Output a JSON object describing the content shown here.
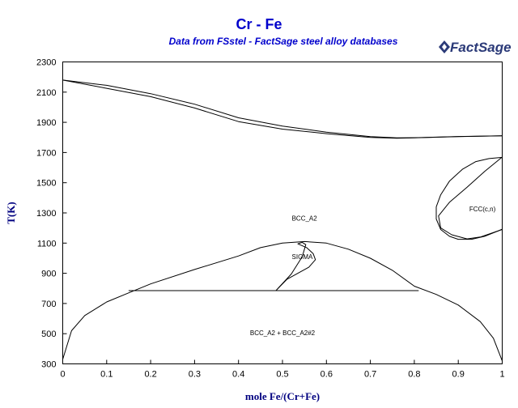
{
  "chart_data": {
    "type": "line",
    "title": "Cr - Fe",
    "subtitle": "Data from FSstel - FactSage steel alloy databases",
    "logo_text": "FactSage",
    "xlabel": "mole Fe/(Cr+Fe)",
    "ylabel": "T(K)",
    "xlim": [
      0,
      1
    ],
    "ylim": [
      300,
      2300
    ],
    "x_ticks": [
      "0",
      "0.1",
      "0.2",
      "0.3",
      "0.4",
      "0.5",
      "0.6",
      "0.7",
      "0.8",
      "0.9",
      "1"
    ],
    "y_ticks": [
      "300",
      "500",
      "700",
      "900",
      "1100",
      "1300",
      "1500",
      "1700",
      "1900",
      "2100",
      "2300"
    ],
    "grid": false,
    "region_labels": [
      {
        "text": "BCC_A2",
        "x": 0.55,
        "y": 1250
      },
      {
        "text": "SIGMA",
        "x": 0.545,
        "y": 995
      },
      {
        "text": "FCC(c,n)",
        "x": 0.955,
        "y": 1310
      },
      {
        "text": "BCC_A2 + BCC_A2#2",
        "x": 0.5,
        "y": 490
      }
    ],
    "series": [
      {
        "values": [
          [
            0,
            2180
          ],
          [
            0.1,
            2125
          ],
          [
            0.2,
            2070
          ],
          [
            0.3,
            1995
          ],
          [
            0.4,
            1905
          ],
          [
            0.5,
            1855
          ],
          [
            0.6,
            1825
          ],
          [
            0.7,
            1800
          ],
          [
            0.76,
            1795
          ],
          [
            0.8,
            1797
          ],
          [
            0.9,
            1805
          ],
          [
            1.0,
            1811
          ]
        ]
      },
      {
        "values": [
          [
            0,
            2180
          ],
          [
            0.1,
            2145
          ],
          [
            0.2,
            2090
          ],
          [
            0.3,
            2020
          ],
          [
            0.4,
            1930
          ],
          [
            0.5,
            1875
          ],
          [
            0.6,
            1835
          ],
          [
            0.7,
            1805
          ],
          [
            0.76,
            1797
          ],
          [
            0.8,
            1798
          ],
          [
            0.9,
            1806
          ],
          [
            1.0,
            1811
          ]
        ]
      },
      {
        "values": [
          [
            0.15,
            785
          ],
          [
            0.81,
            785
          ]
        ]
      },
      {
        "values": [
          [
            0,
            330
          ],
          [
            0.02,
            520
          ],
          [
            0.05,
            620
          ],
          [
            0.1,
            710
          ],
          [
            0.15,
            770
          ],
          [
            0.2,
            830
          ],
          [
            0.3,
            925
          ],
          [
            0.4,
            1015
          ],
          [
            0.45,
            1070
          ],
          [
            0.5,
            1100
          ],
          [
            0.55,
            1110
          ],
          [
            0.6,
            1100
          ],
          [
            0.65,
            1060
          ],
          [
            0.7,
            1000
          ],
          [
            0.75,
            920
          ],
          [
            0.8,
            815
          ],
          [
            0.85,
            760
          ],
          [
            0.9,
            690
          ],
          [
            0.95,
            580
          ],
          [
            0.98,
            470
          ],
          [
            1.0,
            320
          ]
        ]
      },
      {
        "values": [
          [
            0.485,
            785
          ],
          [
            0.52,
            895
          ],
          [
            0.545,
            1010
          ],
          [
            0.553,
            1090
          ],
          [
            0.545,
            1105
          ],
          [
            0.535,
            1095
          ],
          [
            0.555,
            1070
          ],
          [
            0.57,
            1030
          ],
          [
            0.575,
            990
          ],
          [
            0.56,
            940
          ],
          [
            0.51,
            860
          ],
          [
            0.485,
            785
          ]
        ]
      },
      {
        "values": [
          [
            1.0,
            1668
          ],
          [
            0.97,
            1660
          ],
          [
            0.94,
            1640
          ],
          [
            0.91,
            1590
          ],
          [
            0.88,
            1510
          ],
          [
            0.86,
            1420
          ],
          [
            0.85,
            1340
          ],
          [
            0.85,
            1260
          ],
          [
            0.86,
            1190
          ],
          [
            0.88,
            1145
          ],
          [
            0.9,
            1125
          ],
          [
            0.93,
            1125
          ],
          [
            0.96,
            1145
          ],
          [
            0.99,
            1180
          ],
          [
            1.0,
            1192
          ]
        ]
      },
      {
        "values": [
          [
            1.0,
            1670
          ],
          [
            0.96,
            1575
          ],
          [
            0.92,
            1470
          ],
          [
            0.88,
            1370
          ],
          [
            0.855,
            1280
          ],
          [
            0.86,
            1200
          ],
          [
            0.885,
            1155
          ],
          [
            0.92,
            1128
          ],
          [
            0.95,
            1140
          ],
          [
            1.0,
            1190
          ]
        ]
      }
    ]
  }
}
